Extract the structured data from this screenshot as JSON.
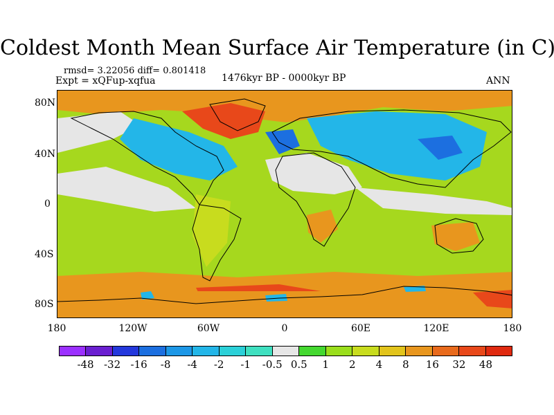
{
  "title": "Coldest Month Mean Surface Air Temperature (in C)",
  "stats": "rmsd= 3.22056 diff= 0.801418",
  "experiment": "Expt = xQFup-xqfua",
  "period": "1476kyr BP - 0000kyr BP",
  "season": "ANN",
  "axes": {
    "y_ticks": [
      "80N",
      "40N",
      "0",
      "40S",
      "80S"
    ],
    "x_ticks": [
      "180",
      "120W",
      "60W",
      "0",
      "60E",
      "120E",
      "180"
    ]
  },
  "colorbar": {
    "labels": [
      "-48",
      "-32",
      "-16",
      "-8",
      "-4",
      "-2",
      "-1",
      "-0.5",
      "0.5",
      "1",
      "2",
      "4",
      "8",
      "16",
      "32",
      "48"
    ],
    "colors": [
      "#9b30ff",
      "#6a1fd0",
      "#2438dc",
      "#1c6fe0",
      "#1d97e6",
      "#23b6e8",
      "#2bd0d8",
      "#3fe0c0",
      "#e6e6e6",
      "#44d830",
      "#9ade1c",
      "#c8dc1e",
      "#e2c41c",
      "#e8961e",
      "#e86a1c",
      "#e8481a",
      "#e02a10"
    ]
  },
  "map": {
    "ocean_base": "#a6d81e",
    "highlights": {
      "warm": "#e8961e",
      "hot": "#e8481a",
      "neutral": "#e6e6e6",
      "cool": "#23b6e8",
      "cold": "#1c6fe0",
      "teal": "#3fe0c0",
      "yellow": "#c8dc1e"
    }
  }
}
